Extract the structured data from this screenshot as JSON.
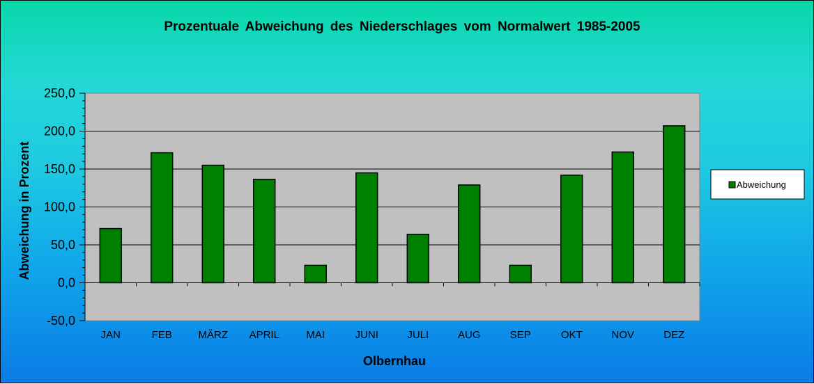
{
  "chart_data": {
    "type": "bar",
    "title": "Prozentuale  Abweichung  des  Niederschlages  vom  Normalwert  1985-2005",
    "xlabel": "Olbernhau",
    "ylabel": "Abweichung in Prozent",
    "categories": [
      "JAN",
      "FEB",
      "MÄRZ",
      "APRIL",
      "MAI",
      "JUNI",
      "JULI",
      "AUG",
      "SEP",
      "OKT",
      "NOV",
      "DEZ"
    ],
    "series": [
      {
        "name": "Abweichung",
        "color": "#008000",
        "values": [
          71.5,
          171.5,
          155.0,
          136.5,
          23.0,
          145.0,
          64.0,
          129.0,
          23.0,
          142.0,
          172.5,
          207.0
        ]
      }
    ],
    "ylim": [
      -50,
      250
    ],
    "yticks": [
      -50,
      0,
      50,
      100,
      150,
      200,
      250
    ],
    "ytick_labels": [
      "-50,0",
      "0,0",
      "50,0",
      "100,0",
      "150,0",
      "200,0",
      "250,0"
    ],
    "grid": true,
    "legend_position": "right",
    "plot_background": "#c0c0c0"
  }
}
